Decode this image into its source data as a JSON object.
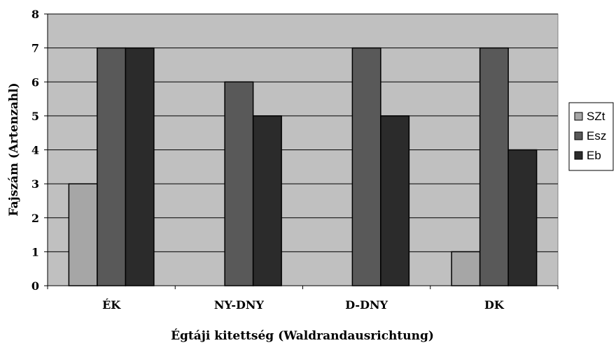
{
  "chart_data": {
    "type": "bar",
    "categories": [
      "ÉK",
      "NY-DNY",
      "D-DNY",
      "DK"
    ],
    "series": [
      {
        "name": "SZt",
        "values": [
          3,
          0,
          0,
          1
        ],
        "color": "#a6a6a6"
      },
      {
        "name": "Esz",
        "values": [
          7,
          6,
          7,
          7
        ],
        "color": "#595959"
      },
      {
        "name": "Eb",
        "values": [
          7,
          5,
          5,
          4
        ],
        "color": "#2b2b2b"
      }
    ],
    "title": "",
    "xlabel": "Égtáji kitettség (Waldrandausrichtung)",
    "ylabel": "Fajszám  (Artenzahl)",
    "ylim": [
      0,
      8
    ],
    "yticks": [
      0,
      1,
      2,
      3,
      4,
      5,
      6,
      7,
      8
    ],
    "grid": true,
    "legend_position": "right",
    "plot_background": "#c0c0c0"
  }
}
